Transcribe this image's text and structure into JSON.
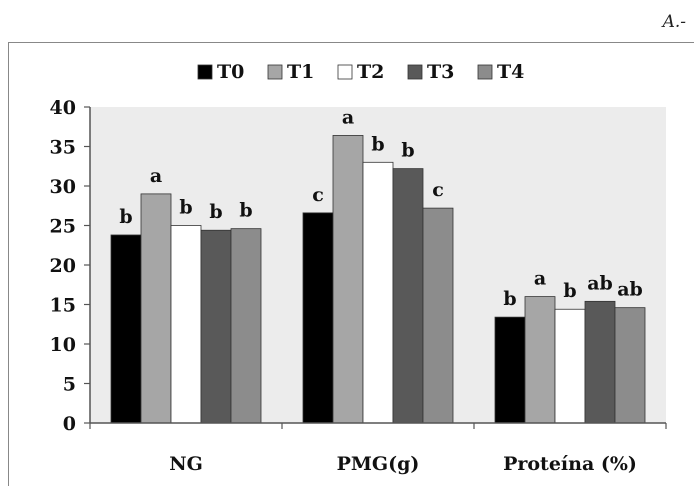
{
  "corner_label": "A.-",
  "chart_data": {
    "type": "bar",
    "categories": [
      "NG",
      "PMG(g)",
      "Proteína (%)"
    ],
    "series": [
      {
        "name": "T0",
        "color": "#000000",
        "values": [
          23.8,
          26.6,
          13.4
        ],
        "letters": [
          "b",
          "c",
          "b"
        ]
      },
      {
        "name": "T1",
        "color": "#a6a6a6",
        "values": [
          29.0,
          36.4,
          16.0
        ],
        "letters": [
          "a",
          "a",
          "a"
        ]
      },
      {
        "name": "T2",
        "color": "#ffffff",
        "values": [
          25.0,
          33.0,
          14.4
        ],
        "letters": [
          "b",
          "b",
          "b"
        ]
      },
      {
        "name": "T3",
        "color": "#595959",
        "values": [
          24.4,
          32.2,
          15.4
        ],
        "letters": [
          "b",
          "b",
          "ab"
        ]
      },
      {
        "name": "T4",
        "color": "#8c8c8c",
        "values": [
          24.6,
          27.2,
          14.6
        ],
        "letters": [
          "b",
          "c",
          "ab"
        ]
      }
    ],
    "ylim": [
      0,
      40
    ],
    "yticks": [
      0,
      5,
      10,
      15,
      20,
      25,
      30,
      35,
      40
    ],
    "grid": false,
    "legend": "top-center"
  }
}
